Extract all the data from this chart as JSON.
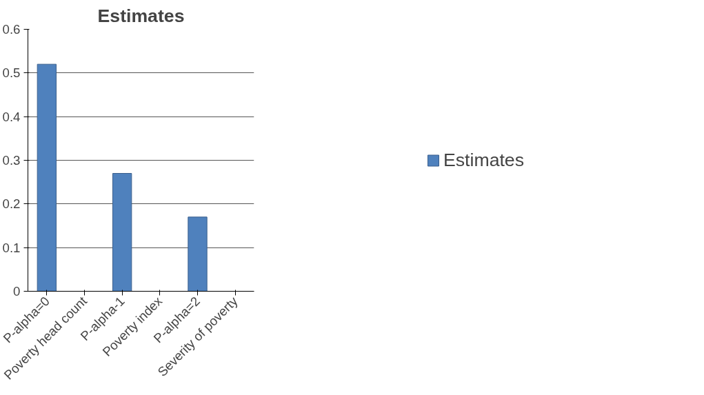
{
  "chart_data": {
    "type": "bar",
    "title": "Estimates",
    "categories": [
      "P-alpha=0",
      "Poverty head count",
      "P-alpha-1",
      "Poverty index",
      "P-alpha=2",
      "Severity of poverty"
    ],
    "series": [
      {
        "name": "Estimates",
        "color": "#4f81bd",
        "values": [
          0.52,
          null,
          0.27,
          null,
          0.17,
          null
        ]
      }
    ],
    "ylim": [
      0,
      0.6
    ],
    "yticks": [
      0,
      0.1,
      0.2,
      0.3,
      0.4,
      0.5,
      0.6
    ],
    "grid": "y",
    "legend": "right"
  }
}
